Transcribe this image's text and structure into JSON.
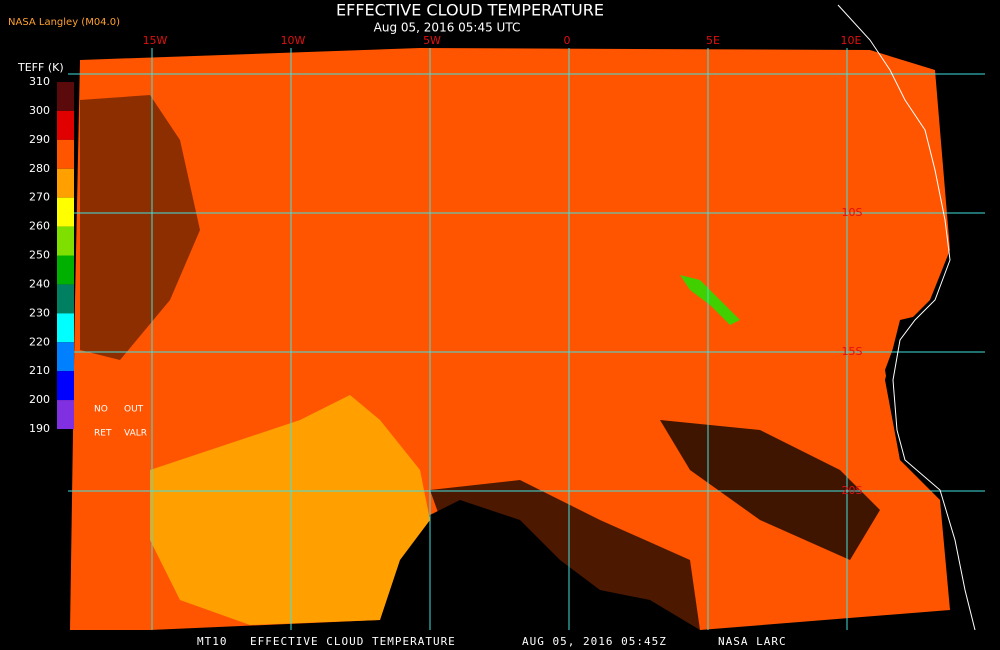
{
  "header": {
    "title": "EFFECTIVE CLOUD TEMPERATURE",
    "subtitle": "Aug 05, 2016 05:45 UTC",
    "source": "NASA Langley (M04.0)"
  },
  "legend": {
    "title": "TEFF (K)",
    "labels": [
      310,
      300,
      290,
      280,
      270,
      260,
      250,
      240,
      230,
      220,
      210,
      200,
      190
    ],
    "colors": [
      "#5a0a0a",
      "#e00000",
      "#ff5400",
      "#ffa000",
      "#ffff00",
      "#7fe000",
      "#00b000",
      "#008060",
      "#00ffff",
      "#0080ff",
      "#0000ff",
      "#8030e0"
    ],
    "notes": [
      "NO",
      "OUT",
      "RET",
      "VALR"
    ]
  },
  "grid": {
    "lon_labels": [
      "15W",
      "10W",
      "5W",
      "0",
      "5E",
      "10E"
    ],
    "lat_labels": [
      "10S",
      "15S",
      "20S"
    ]
  },
  "footer": [
    "MT10",
    "EFFECTIVE CLOUD TEMPERATURE",
    "AUG 05, 2016 05:45Z",
    "NASA LARC"
  ]
}
